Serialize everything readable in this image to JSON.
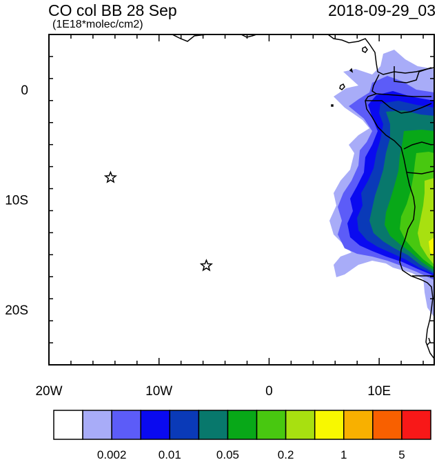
{
  "header": {
    "title": "CO col BB 28 Sep",
    "datetime": "2018-09-29_03",
    "units": "(1E18*molec/cm2)"
  },
  "map": {
    "extent": {
      "lon": [
        -20,
        15
      ],
      "lat": [
        -25,
        5
      ]
    },
    "x_ticks": [
      {
        "lon": -20,
        "label": "20W"
      },
      {
        "lon": -10,
        "label": "10W"
      },
      {
        "lon": 0,
        "label": "0"
      },
      {
        "lon": 10,
        "label": "10E"
      }
    ],
    "y_ticks": [
      {
        "lat": 0,
        "label": "0"
      },
      {
        "lat": -10,
        "label": "10S"
      },
      {
        "lat": -20,
        "label": "20S"
      }
    ],
    "markers": [
      {
        "name": "star-marker-1",
        "lon": -14.4,
        "lat": -8.0,
        "symbol": "star"
      },
      {
        "name": "star-marker-2",
        "lon": -5.7,
        "lat": -16.0,
        "symbol": "star"
      }
    ]
  },
  "colorbar": {
    "colors": [
      "#ffffff",
      "#a8acf8",
      "#5c5cf8",
      "#0a0af0",
      "#0a3ab8",
      "#08786c",
      "#08a818",
      "#48c810",
      "#a8e010",
      "#f8f800",
      "#f8b000",
      "#f86000",
      "#f81818"
    ],
    "labels": [
      {
        "after_index": 2,
        "text": "0.002"
      },
      {
        "after_index": 4,
        "text": "0.01"
      },
      {
        "after_index": 6,
        "text": "0.05"
      },
      {
        "after_index": 8,
        "text": "0.2"
      },
      {
        "after_index": 10,
        "text": "1"
      },
      {
        "after_index": 12,
        "text": "5"
      }
    ]
  }
}
